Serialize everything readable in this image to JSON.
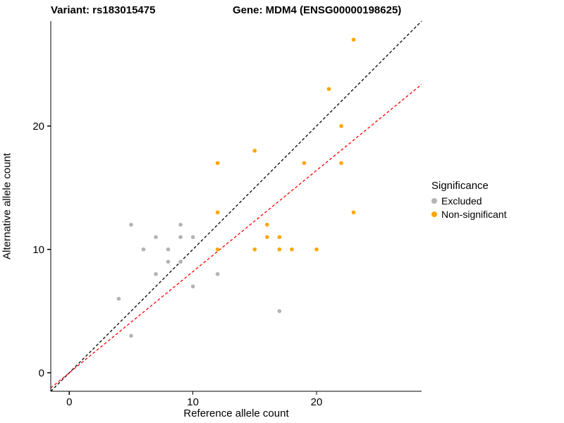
{
  "titles": {
    "left": "Variant: rs183015475",
    "right": "Gene: MDM4 (ENSG00000198625)"
  },
  "chart_data": {
    "type": "scatter",
    "xlabel": "Reference allele count",
    "ylabel": "Alternative allele count",
    "xlim": [
      -1.5,
      28.5
    ],
    "ylim": [
      -1.5,
      28.5
    ],
    "x_ticks": [
      "0",
      "10",
      "20"
    ],
    "y_ticks": [
      "0",
      "10",
      "20"
    ],
    "grid": false,
    "legend": {
      "title": "Significance",
      "position": "right",
      "entries": [
        {
          "label": "Excluded",
          "color": "#b3b3b3"
        },
        {
          "label": "Non-significant",
          "color": "#FFA500"
        }
      ]
    },
    "series": [
      {
        "name": "Excluded",
        "color": "#b3b3b3",
        "points": [
          [
            4,
            6
          ],
          [
            5,
            3
          ],
          [
            5,
            12
          ],
          [
            6,
            10
          ],
          [
            7,
            8
          ],
          [
            7,
            11
          ],
          [
            8,
            9
          ],
          [
            8,
            10
          ],
          [
            9,
            9
          ],
          [
            9,
            11
          ],
          [
            9,
            12
          ],
          [
            10,
            7
          ],
          [
            10,
            11
          ],
          [
            12,
            8
          ],
          [
            17,
            5
          ]
        ]
      },
      {
        "name": "Non-significant",
        "color": "#FFA500",
        "points": [
          [
            12,
            10
          ],
          [
            12,
            13
          ],
          [
            12,
            17
          ],
          [
            15,
            10
          ],
          [
            15,
            18
          ],
          [
            16,
            11
          ],
          [
            16,
            12
          ],
          [
            17,
            10
          ],
          [
            17,
            11
          ],
          [
            18,
            10
          ],
          [
            19,
            17
          ],
          [
            20,
            10
          ],
          [
            21,
            23
          ],
          [
            22,
            17
          ],
          [
            22,
            20
          ],
          [
            23,
            13
          ],
          [
            23,
            27
          ]
        ]
      }
    ],
    "lines": [
      {
        "name": "identity",
        "color": "#000000",
        "dashed": true,
        "slope": 1,
        "intercept": 0
      },
      {
        "name": "fit",
        "color": "#FF0000",
        "dashed": true,
        "slope": 0.82,
        "intercept": 0
      }
    ]
  }
}
